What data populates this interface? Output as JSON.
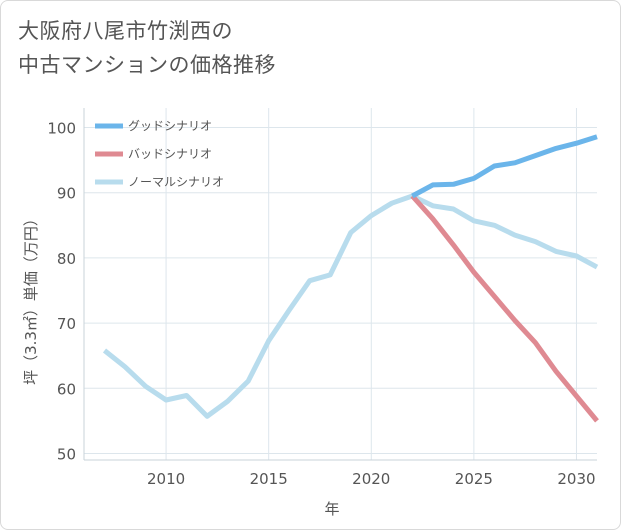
{
  "title_lines": [
    "大阪府八尾市竹渕西の",
    "中古マンションの価格推移"
  ],
  "chart_data": {
    "type": "line",
    "xlabel": "年",
    "ylabel": "坪（3.3㎡）単価（万円）",
    "xlim": [
      2006,
      2031
    ],
    "ylim": [
      49,
      103
    ],
    "x_ticks": [
      2010,
      2015,
      2020,
      2025,
      2030
    ],
    "y_ticks": [
      50,
      60,
      70,
      80,
      90,
      100
    ],
    "grid": true,
    "legend_position": "top-left",
    "series": [
      {
        "name": "グッドシナリオ",
        "color": "#6bb5ea",
        "x": [
          2022,
          2023,
          2024,
          2025,
          2026,
          2027,
          2028,
          2029,
          2030,
          2031
        ],
        "y": [
          89.5,
          91.2,
          91.3,
          92.2,
          94.1,
          94.6,
          95.7,
          96.8,
          97.6,
          98.6
        ]
      },
      {
        "name": "バッドシナリオ",
        "color": "#df8a92",
        "x": [
          2022,
          2023,
          2024,
          2025,
          2026,
          2027,
          2028,
          2029,
          2030,
          2031
        ],
        "y": [
          89.5,
          86.0,
          82.0,
          77.8,
          74.1,
          70.4,
          67.0,
          62.6,
          58.8,
          55.0
        ]
      },
      {
        "name": "ノーマルシナリオ",
        "color": "#b8dced",
        "x": [
          2007,
          2008,
          2009,
          2010,
          2011,
          2012,
          2013,
          2014,
          2015,
          2016,
          2017,
          2018,
          2019,
          2020,
          2021,
          2022,
          2023,
          2024,
          2025,
          2026,
          2027,
          2028,
          2029,
          2030,
          2031
        ],
        "y": [
          65.8,
          63.3,
          60.3,
          58.2,
          58.9,
          55.7,
          58.0,
          61.1,
          67.3,
          72.0,
          76.5,
          77.4,
          83.9,
          86.5,
          88.4,
          89.5,
          88.0,
          87.5,
          85.7,
          85.0,
          83.5,
          82.5,
          81.0,
          80.3,
          78.6
        ]
      }
    ]
  }
}
